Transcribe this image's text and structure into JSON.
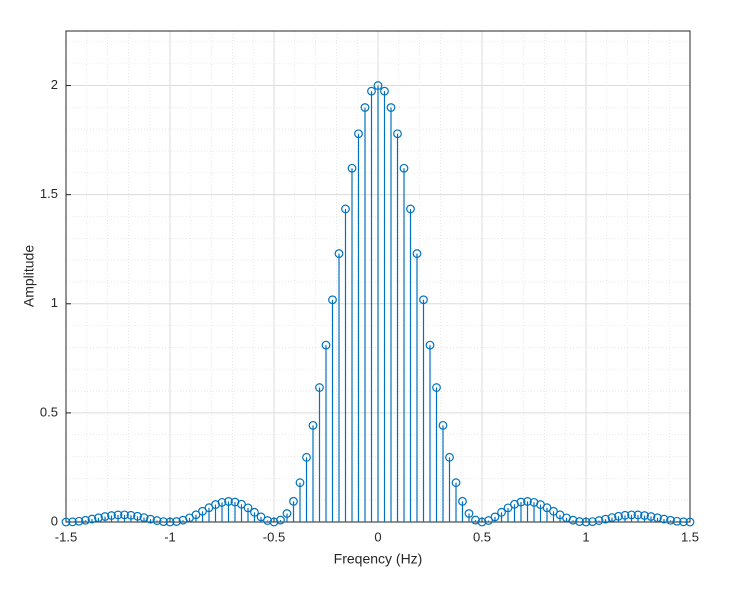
{
  "chart_data": {
    "type": "stem",
    "xlabel": "Freqency (Hz)",
    "ylabel": "Amplitude",
    "x": [
      -1.5,
      -1.46875,
      -1.4375,
      -1.40625,
      -1.375,
      -1.34375,
      -1.3125,
      -1.28125,
      -1.25,
      -1.21875,
      -1.1875,
      -1.15625,
      -1.125,
      -1.09375,
      -1.0625,
      -1.03125,
      -1,
      -0.96875,
      -0.9375,
      -0.90625,
      -0.875,
      -0.84375,
      -0.8125,
      -0.78125,
      -0.75,
      -0.71875,
      -0.6875,
      -0.65625,
      -0.625,
      -0.59375,
      -0.5625,
      -0.53125,
      -0.5,
      -0.46875,
      -0.4375,
      -0.40625,
      -0.375,
      -0.34375,
      -0.3125,
      -0.28125,
      -0.25,
      -0.21875,
      -0.1875,
      -0.15625,
      -0.125,
      -0.09375,
      -0.0625,
      -0.03125,
      0,
      0.03125,
      0.0625,
      0.09375,
      0.125,
      0.15625,
      0.1875,
      0.21875,
      0.25,
      0.28125,
      0.3125,
      0.34375,
      0.375,
      0.40625,
      0.4375,
      0.46875,
      0.5,
      0.53125,
      0.5625,
      0.59375,
      0.625,
      0.65625,
      0.6875,
      0.71875,
      0.75,
      0.78125,
      0.8125,
      0.84375,
      0.875,
      0.90625,
      0.9375,
      0.96875,
      1,
      1.03125,
      1.0625,
      1.09375,
      1.125,
      1.15625,
      1.1875,
      1.21875,
      1.25,
      1.28125,
      1.3125,
      1.34375,
      1.375,
      1.40625,
      1.4375,
      1.46875,
      1.5
    ],
    "series": [
      {
        "color": "#0072BD",
        "values": [
          0,
          0.0009,
          0.0036,
          0.0079,
          0.0134,
          0.0194,
          0.0251,
          0.0297,
          0.0324,
          0.0328,
          0.0307,
          0.0262,
          0.02,
          0.0131,
          0.0066,
          0.0018,
          0,
          0.0021,
          0.0084,
          0.019,
          0.0331,
          0.0492,
          0.0655,
          0.0798,
          0.0901,
          0.0943,
          0.0915,
          0.0813,
          0.0648,
          0.0444,
          0.0234,
          0.0068,
          0,
          0.0088,
          0.0388,
          0.0947,
          0.1801,
          0.2964,
          0.4428,
          0.6161,
          0.8106,
          1.0184,
          1.23,
          1.4346,
          1.6211,
          1.7791,
          1.8993,
          1.9744,
          2,
          1.9744,
          1.8993,
          1.7791,
          1.6211,
          1.4346,
          1.23,
          1.0184,
          0.8106,
          0.6161,
          0.4428,
          0.2964,
          0.1801,
          0.0947,
          0.0388,
          0.0088,
          0,
          0.0068,
          0.0234,
          0.0444,
          0.0648,
          0.0813,
          0.0915,
          0.0943,
          0.0901,
          0.0798,
          0.0655,
          0.0492,
          0.0331,
          0.019,
          0.0084,
          0.0021,
          0,
          0.0018,
          0.0066,
          0.0131,
          0.02,
          0.0262,
          0.0307,
          0.0328,
          0.0324,
          0.0297,
          0.0251,
          0.0194,
          0.0134,
          0.0079,
          0.0036,
          0.0009,
          0
        ]
      }
    ],
    "xlim": [
      -1.5,
      1.5
    ],
    "xticks": [
      -1.5,
      -1,
      -0.5,
      0,
      0.5,
      1,
      1.5
    ],
    "ylim": [
      0,
      2.25
    ],
    "yticks": [
      0,
      0.5,
      1,
      1.5,
      2
    ],
    "grid": true,
    "minor_grid": true
  }
}
